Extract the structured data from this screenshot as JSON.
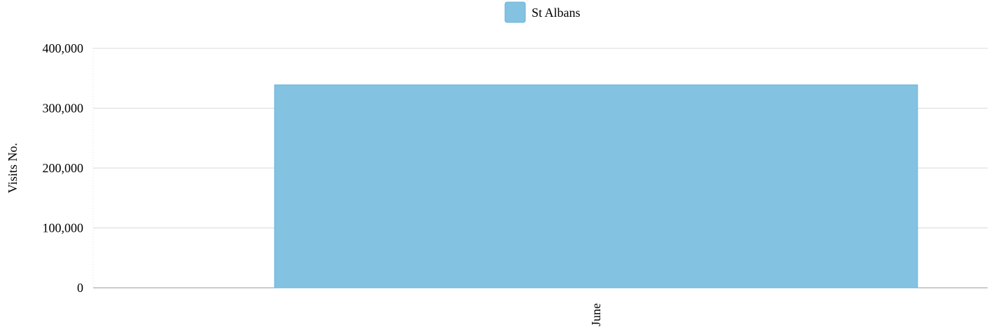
{
  "chart_data": {
    "type": "bar",
    "categories": [
      "June"
    ],
    "series": [
      {
        "name": "St Albans",
        "values": [
          339000
        ],
        "color": "#84c2e2",
        "border_color": "#6ab3d8"
      }
    ],
    "title": "",
    "xlabel": "",
    "ylabel": "Visits No.",
    "ylim": [
      0,
      400000
    ],
    "yticks": [
      0,
      100000,
      200000,
      300000,
      400000
    ],
    "ytick_labels": [
      "0",
      "100,000",
      "200,000",
      "300,000",
      "400,000"
    ],
    "xtick_labels": [
      "June"
    ],
    "legend_position": "top-center",
    "grid": true
  }
}
